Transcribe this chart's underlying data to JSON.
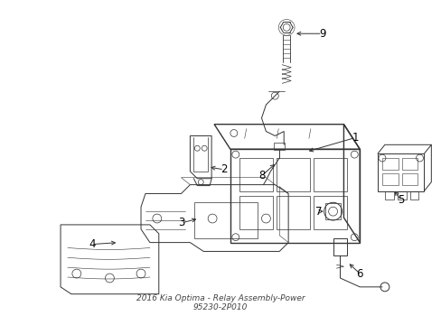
{
  "bg_color": "#ffffff",
  "line_color": "#333333",
  "title": "2016 Kia Optima - Relay Assembly-Power\n95230-2P010",
  "title_fontsize": 6.5,
  "fig_width": 4.89,
  "fig_height": 3.6,
  "dpi": 100
}
